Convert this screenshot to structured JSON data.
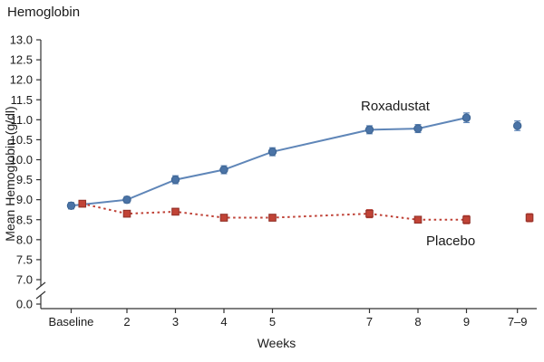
{
  "title": "Hemoglobin",
  "chart_data": {
    "type": "line",
    "title": "Hemoglobin",
    "xlabel": "Weeks",
    "ylabel": "Mean Hemoglobin (g/dl)",
    "x_categories": [
      "Baseline",
      "2",
      "3",
      "4",
      "5",
      "7",
      "8",
      "9",
      "7–9"
    ],
    "x_positions": [
      0.85,
      2,
      3,
      4,
      5,
      7,
      8,
      9,
      10.05
    ],
    "y_ticks": [
      13.0,
      12.5,
      12.0,
      11.5,
      11.0,
      10.5,
      10.0,
      9.5,
      9.0,
      8.5,
      8.0,
      7.5,
      7.0
    ],
    "y_break_tick": "0.0",
    "ylim": [
      7.0,
      13.0
    ],
    "axis_break": true,
    "grid": false,
    "series": [
      {
        "name": "Roxadustat",
        "color": "#5f86b8",
        "marker_fill": "#4a73a6",
        "marker_edge": "#3c6391",
        "marker": "circle",
        "line_style": "solid",
        "x": [
          0.85,
          2,
          3,
          4,
          5,
          7,
          8,
          9
        ],
        "values": [
          8.85,
          9.0,
          9.5,
          9.75,
          10.2,
          10.75,
          10.78,
          11.05
        ],
        "errors": [
          0.08,
          0.08,
          0.1,
          0.1,
          0.1,
          0.1,
          0.1,
          0.12
        ],
        "pooled_x": 10.05,
        "pooled_value": 10.85,
        "pooled_error": 0.12
      },
      {
        "name": "Placebo",
        "color": "#bf4136",
        "marker_fill": "#c14336",
        "marker_edge": "#8f2f27",
        "marker": "square",
        "line_style": "dashed",
        "x": [
          1.08,
          2,
          3,
          4,
          5,
          7,
          8,
          9
        ],
        "values": [
          8.9,
          8.65,
          8.7,
          8.55,
          8.55,
          8.65,
          8.5,
          8.5
        ],
        "errors": [
          0.08,
          0.08,
          0.08,
          0.08,
          0.08,
          0.1,
          0.08,
          0.1
        ],
        "pooled_x": 10.3,
        "pooled_value": 8.55,
        "pooled_error": 0.1
      }
    ]
  }
}
